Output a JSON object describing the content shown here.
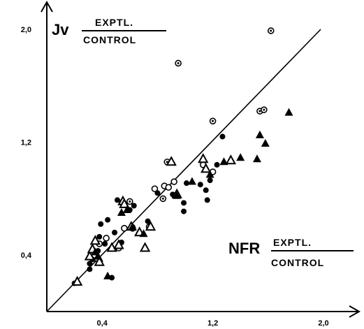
{
  "chart_data": {
    "type": "scatter",
    "xlim": [
      0,
      2.15
    ],
    "ylim": [
      0,
      2.1
    ],
    "x_ticks": [
      {
        "value": 0.4,
        "label": "0,4"
      },
      {
        "value": 1.2,
        "label": "1,2"
      },
      {
        "value": 2.0,
        "label": "2,0"
      }
    ],
    "y_ticks": [
      {
        "value": 0.4,
        "label": "0,4"
      },
      {
        "value": 1.2,
        "label": "1,2"
      },
      {
        "value": 2.0,
        "label": "2,0"
      }
    ],
    "ylabel": {
      "main": "Jv",
      "numerator": "EXPTL.",
      "denominator": "CONTROL"
    },
    "xlabel": {
      "main": "NFR",
      "numerator": "EXPTL.",
      "denominator": "CONTROL"
    },
    "identity_line": {
      "from": [
        0,
        0
      ],
      "to": [
        1.98,
        2.0
      ]
    },
    "grid": false,
    "legend": "none",
    "series": [
      {
        "marker": "filled-circle",
        "points": [
          [
            0.2,
            0.2
          ],
          [
            0.31,
            0.3
          ],
          [
            0.31,
            0.34
          ],
          [
            0.33,
            0.37
          ],
          [
            0.37,
            0.43
          ],
          [
            0.38,
            0.53
          ],
          [
            0.42,
            0.48
          ],
          [
            0.47,
            0.24
          ],
          [
            0.44,
            0.65
          ],
          [
            0.39,
            0.62
          ],
          [
            0.49,
            0.56
          ],
          [
            0.54,
            0.49
          ],
          [
            0.51,
            0.79
          ],
          [
            0.6,
            0.72
          ],
          [
            0.63,
            0.75
          ],
          [
            0.62,
            0.6
          ],
          [
            0.73,
            0.64
          ],
          [
            0.8,
            0.84
          ],
          [
            0.91,
            0.83
          ],
          [
            0.99,
            0.77
          ],
          [
            0.99,
            0.71
          ],
          [
            1.01,
            0.91
          ],
          [
            1.11,
            0.9
          ],
          [
            1.15,
            0.86
          ],
          [
            1.16,
            0.79
          ],
          [
            1.18,
            0.93
          ],
          [
            1.23,
            1.04
          ],
          [
            1.27,
            1.24
          ]
        ]
      },
      {
        "marker": "open-circle",
        "points": [
          [
            0.38,
            0.48
          ],
          [
            0.43,
            0.52
          ],
          [
            0.52,
            0.45
          ],
          [
            0.56,
            0.59
          ],
          [
            0.62,
            0.59
          ],
          [
            0.74,
            0.6
          ],
          [
            0.78,
            0.87
          ],
          [
            0.85,
            0.89
          ],
          [
            0.88,
            0.88
          ],
          [
            0.92,
            0.92
          ],
          [
            1.13,
            1.04
          ],
          [
            1.2,
            0.99
          ]
        ]
      },
      {
        "marker": "dotted-circle",
        "points": [
          [
            0.6,
            0.78
          ],
          [
            0.84,
            0.8
          ],
          [
            0.87,
            1.06
          ],
          [
            0.95,
            1.76
          ],
          [
            1.2,
            1.35
          ],
          [
            1.54,
            1.42
          ],
          [
            1.57,
            1.43
          ],
          [
            1.62,
            1.99
          ]
        ]
      },
      {
        "marker": "open-triangle",
        "points": [
          [
            0.22,
            0.21
          ],
          [
            0.31,
            0.39
          ],
          [
            0.33,
            0.44
          ],
          [
            0.35,
            0.5
          ],
          [
            0.37,
            0.38
          ],
          [
            0.38,
            0.35
          ],
          [
            0.47,
            0.45
          ],
          [
            0.52,
            0.47
          ],
          [
            0.55,
            0.78
          ],
          [
            0.56,
            0.76
          ],
          [
            0.61,
            0.6
          ],
          [
            0.67,
            0.56
          ],
          [
            0.71,
            0.45
          ],
          [
            0.75,
            0.6
          ],
          [
            0.9,
            1.06
          ],
          [
            0.94,
            0.83
          ],
          [
            1.13,
            1.08
          ],
          [
            1.15,
            1.01
          ],
          [
            1.33,
            1.07
          ]
        ]
      },
      {
        "marker": "filled-triangle",
        "points": [
          [
            0.35,
            0.42
          ],
          [
            0.37,
            0.39
          ],
          [
            0.44,
            0.25
          ],
          [
            0.54,
            0.7
          ],
          [
            0.58,
            0.72
          ],
          [
            0.62,
            0.6
          ],
          [
            0.7,
            0.55
          ],
          [
            0.94,
            0.82
          ],
          [
            1.05,
            0.92
          ],
          [
            1.18,
            0.97
          ],
          [
            1.28,
            1.06
          ],
          [
            1.4,
            1.09
          ],
          [
            1.52,
            1.08
          ],
          [
            1.54,
            1.25
          ],
          [
            1.58,
            1.19
          ],
          [
            1.75,
            1.41
          ]
        ]
      }
    ]
  }
}
